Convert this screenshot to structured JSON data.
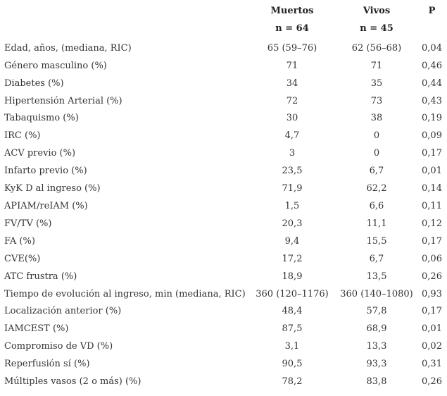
{
  "table": {
    "columns": {
      "muertos": {
        "label": "Muertos",
        "n": "n = 64"
      },
      "vivos": {
        "label": "Vivos",
        "n": "n = 45"
      },
      "p_label": "P"
    },
    "rows": [
      {
        "label": "Edad, años, (mediana, RIC)",
        "muertos": "65 (59–76)",
        "vivos": "62 (56–68)",
        "p": "0,04"
      },
      {
        "label": "Género masculino (%)",
        "muertos": "71",
        "vivos": "71",
        "p": "0,46"
      },
      {
        "label": "Diabetes (%)",
        "muertos": "34",
        "vivos": "35",
        "p": "0,44"
      },
      {
        "label": "Hipertensión Arterial (%)",
        "muertos": "72",
        "vivos": "73",
        "p": "0,43"
      },
      {
        "label": "Tabaquismo (%)",
        "muertos": "30",
        "vivos": "38",
        "p": "0,19"
      },
      {
        "label": "IRC (%)",
        "muertos": "4,7",
        "vivos": "0",
        "p": "0,09"
      },
      {
        "label": "ACV previo (%)",
        "muertos": "3",
        "vivos": "0",
        "p": "0,17"
      },
      {
        "label": "Infarto previo (%)",
        "muertos": "23,5",
        "vivos": "6,7",
        "p": "0,01"
      },
      {
        "label": "KyK D al ingreso (%)",
        "muertos": "71,9",
        "vivos": "62,2",
        "p": "0,14"
      },
      {
        "label": "APIAM/reIAM (%)",
        "muertos": "1,5",
        "vivos": "6,6",
        "p": "0,11"
      },
      {
        "label": "FV/TV (%)",
        "muertos": "20,3",
        "vivos": "11,1",
        "p": "0,12"
      },
      {
        "label": "FA (%)",
        "muertos": "9,4",
        "vivos": "15,5",
        "p": "0,17"
      },
      {
        "label": "CVE(%)",
        "muertos": "17,2",
        "vivos": "6,7",
        "p": "0,06"
      },
      {
        "label": "ATC frustra (%)",
        "muertos": "18,9",
        "vivos": "13,5",
        "p": "0,26"
      },
      {
        "label": "Tiempo de evolución al ingreso, min (mediana, RIC)",
        "muertos": "360 (120–1176)",
        "vivos": "360 (140–1080)",
        "p": "0,93"
      },
      {
        "label": "Localización anterior (%)",
        "muertos": "48,4",
        "vivos": "57,8",
        "p": "0,17"
      },
      {
        "label": "IAMCEST (%)",
        "muertos": "87,5",
        "vivos": "68,9",
        "p": "0,01"
      },
      {
        "label": "Compromiso de VD (%)",
        "muertos": "3,1",
        "vivos": "13,3",
        "p": "0,02"
      },
      {
        "label": "Reperfusión sí (%)",
        "muertos": "90,5",
        "vivos": "93,3",
        "p": "0,31"
      },
      {
        "label": "Múltiples vasos (2 o más) (%)",
        "muertos": "78,2",
        "vivos": "83,8",
        "p": "0,26"
      }
    ]
  },
  "colors": {
    "text": "#333333",
    "header_text": "#222222",
    "background": "#ffffff"
  }
}
